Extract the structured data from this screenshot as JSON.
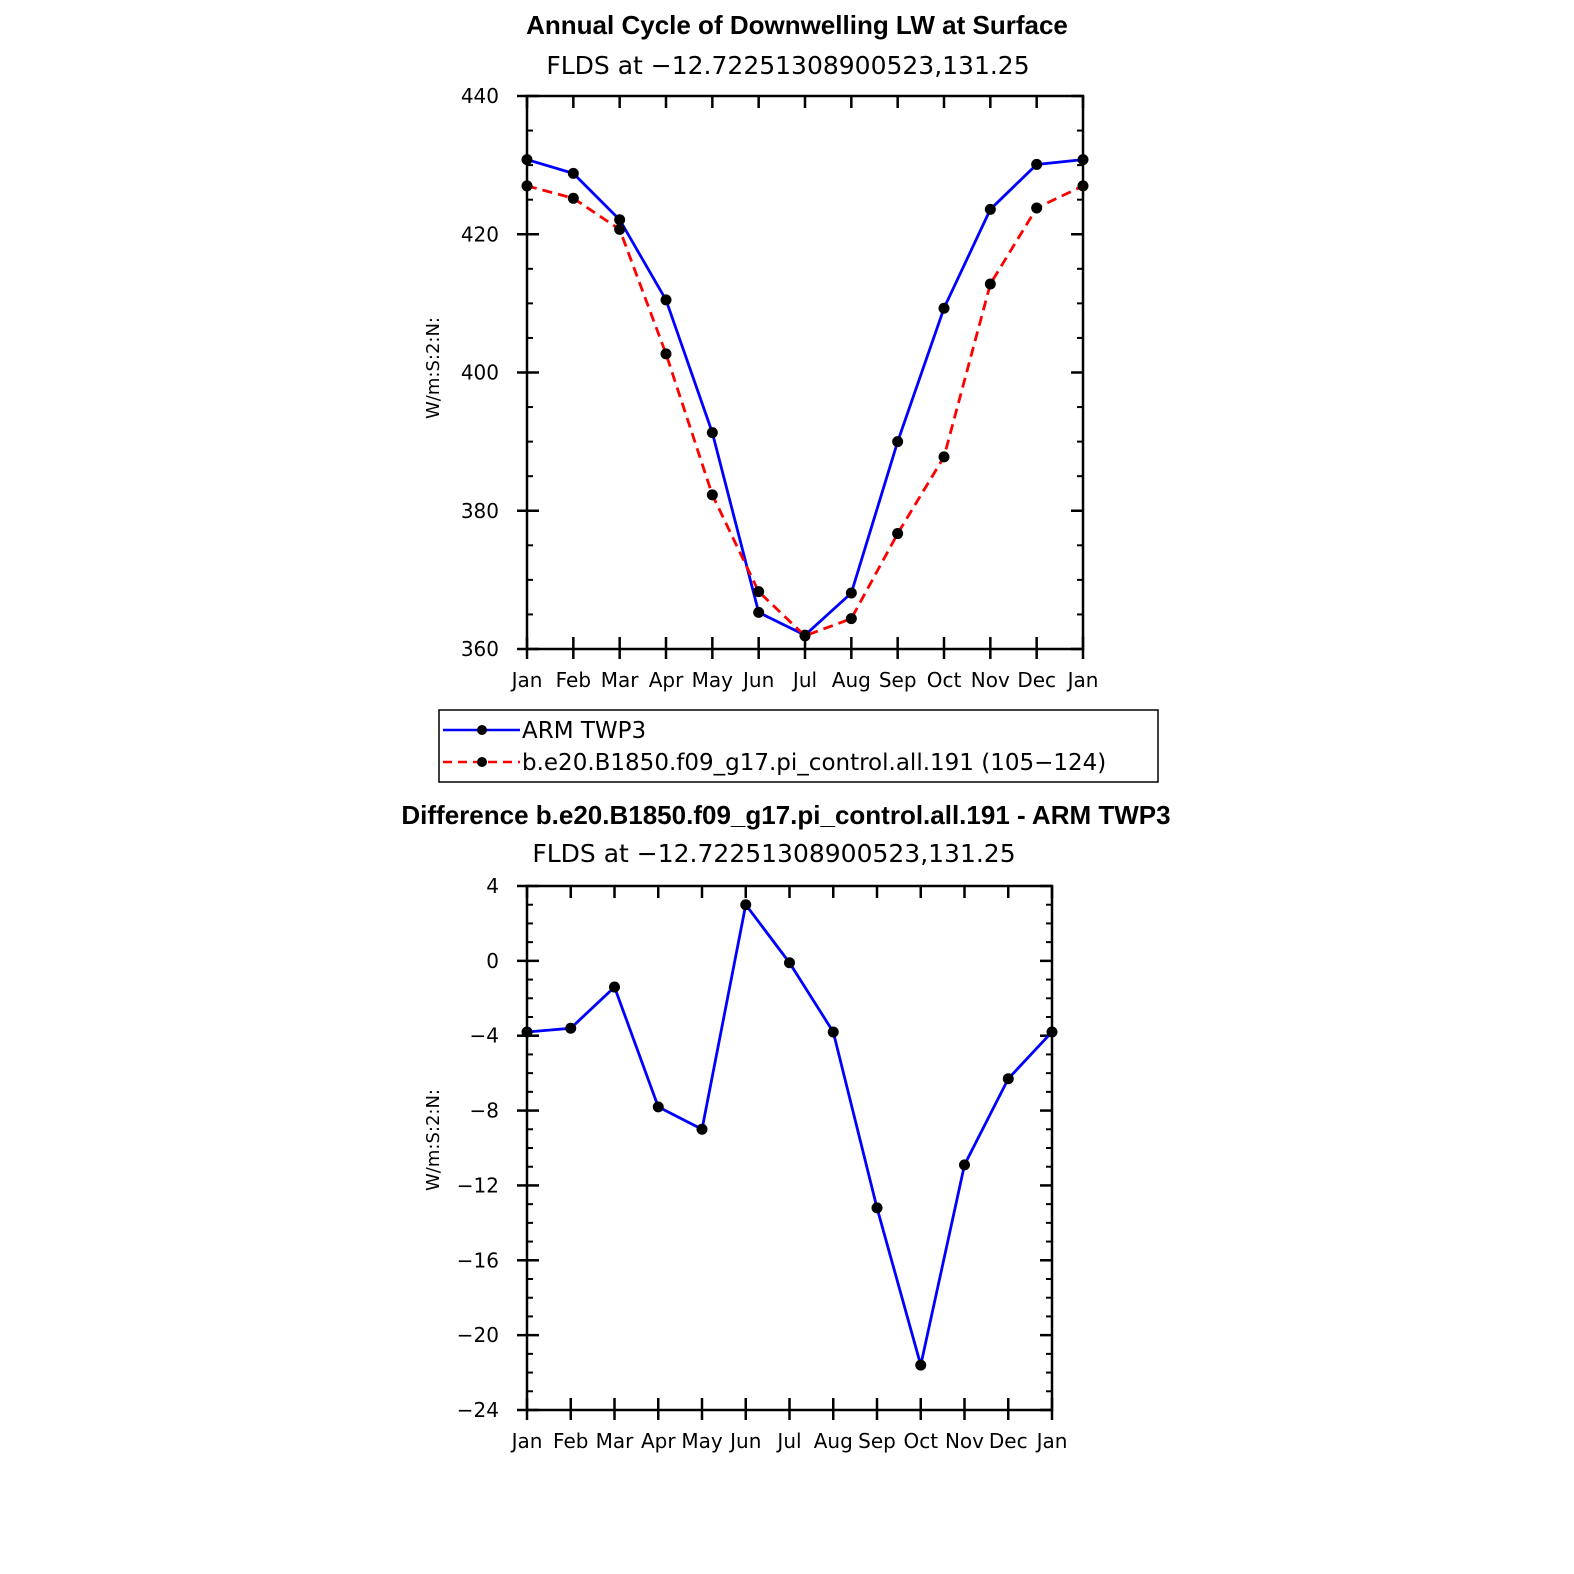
{
  "chart_data": [
    {
      "type": "line",
      "title": "Annual Cycle of Downwelling LW at Surface",
      "subtitle": "FLDS at −12.72251308900523,131.25",
      "ylabel": "W/m:S:2:N:",
      "xlabel": "",
      "ylim": [
        360,
        440
      ],
      "yticks": [
        "360",
        "380",
        "400",
        "420",
        "440"
      ],
      "categories": [
        "Jan",
        "Feb",
        "Mar",
        "Apr",
        "May",
        "Jun",
        "Jul",
        "Aug",
        "Sep",
        "Oct",
        "Nov",
        "Dec",
        "Jan"
      ],
      "grid": false,
      "legend": "bottom",
      "series": [
        {
          "name": "ARM TWP3",
          "color": "#0000ff",
          "dash": "solid",
          "values": [
            430.8,
            428.8,
            422.1,
            410.5,
            391.3,
            365.3,
            362.0,
            368.1,
            390.0,
            409.3,
            423.6,
            430.1,
            430.8
          ]
        },
        {
          "name": "b.e20.B1850.f09_g17.pi_control.all.191 (105−124)",
          "color": "#ff0000",
          "dash": "dashed",
          "values": [
            427.0,
            425.2,
            420.7,
            402.7,
            382.3,
            368.3,
            361.9,
            364.4,
            376.7,
            387.8,
            412.8,
            423.8,
            427.0
          ]
        }
      ]
    },
    {
      "type": "line",
      "title": "Difference b.e20.B1850.f09_g17.pi_control.all.191 - ARM TWP3",
      "subtitle": "FLDS at −12.72251308900523,131.25",
      "ylabel": "W/m:S:2:N:",
      "xlabel": "",
      "ylim": [
        -24,
        4
      ],
      "yticks": [
        "−24",
        "−20",
        "−16",
        "−12",
        "−8",
        "−4",
        "0",
        "4"
      ],
      "categories": [
        "Jan",
        "Feb",
        "Mar",
        "Apr",
        "May",
        "Jun",
        "Jul",
        "Aug",
        "Sep",
        "Oct",
        "Nov",
        "Dec",
        "Jan"
      ],
      "grid": false,
      "series": [
        {
          "color": "#0000ff",
          "dash": "solid",
          "values": [
            -3.8,
            -3.6,
            -1.4,
            -7.8,
            -9.0,
            3.0,
            -0.1,
            -3.8,
            -13.2,
            -21.6,
            -10.9,
            -6.3,
            -3.8
          ]
        }
      ]
    }
  ]
}
